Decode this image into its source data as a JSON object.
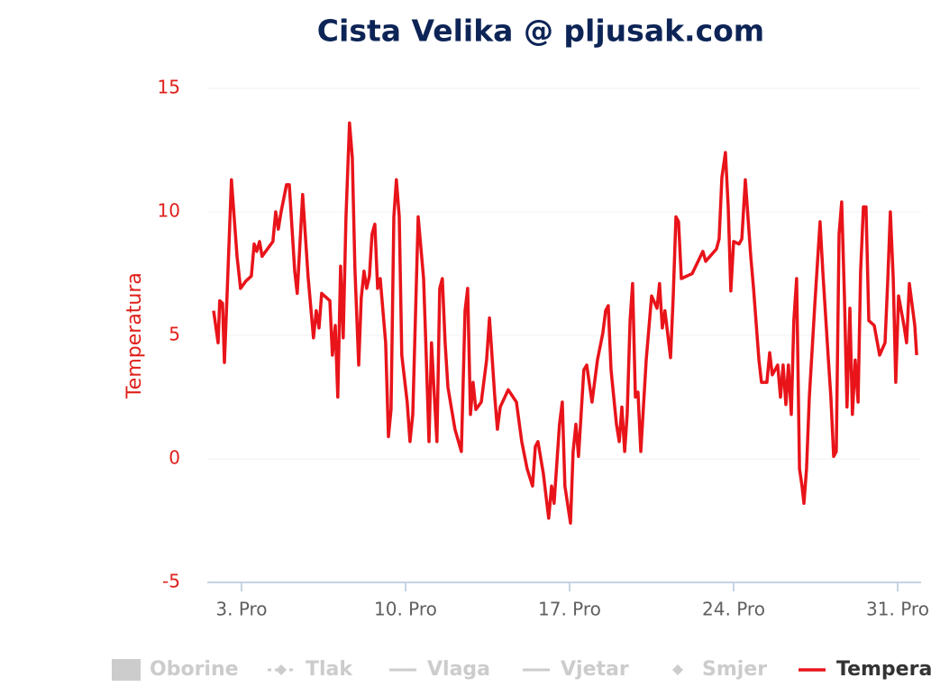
{
  "chart_data": {
    "type": "line",
    "title": "Cista Velika @ pljusak.com",
    "y_label": "Temperatura",
    "xlim": [
      1.54,
      32
    ],
    "xticks": [
      {
        "value": 3,
        "label": "3. Pro"
      },
      {
        "value": 10,
        "label": "10. Pro"
      },
      {
        "value": 17,
        "label": "17. Pro"
      },
      {
        "value": 24,
        "label": "24. Pro"
      },
      {
        "value": 31,
        "label": "31. Pro"
      }
    ],
    "ylim": [
      -5,
      15
    ],
    "yticks": [
      -5,
      0,
      5,
      10,
      15
    ],
    "grid": true,
    "legend_items": [
      {
        "name": "Oborine",
        "symbol": "square",
        "color": "#cccccc"
      },
      {
        "name": "Tlak",
        "symbol": "dash-diamond",
        "color": "#cccccc"
      },
      {
        "name": "Vlaga",
        "symbol": "line",
        "color": "#cccccc"
      },
      {
        "name": "Vjetar",
        "symbol": "line",
        "color": "#cccccc"
      },
      {
        "name": "Smjer",
        "symbol": "diamond",
        "color": "#cccccc"
      }
    ],
    "x": [
      1.81,
      2.0,
      2.07,
      2.19,
      2.27,
      2.38,
      2.57,
      2.81,
      2.96,
      3.19,
      3.42,
      3.54,
      3.65,
      3.77,
      3.88,
      4.34,
      4.46,
      4.57,
      4.69,
      4.92,
      5.04,
      5.27,
      5.38,
      5.61,
      5.84,
      6.07,
      6.19,
      6.31,
      6.42,
      6.77,
      6.88,
      7.0,
      7.11,
      7.23,
      7.34,
      7.46,
      7.61,
      7.73,
      7.84,
      8.0,
      8.11,
      8.23,
      8.34,
      8.46,
      8.57,
      8.69,
      8.81,
      8.92,
      9.15,
      9.27,
      9.38,
      9.5,
      9.61,
      9.73,
      9.84,
      10.07,
      10.19,
      10.31,
      10.54,
      10.77,
      10.88,
      11.0,
      11.11,
      11.23,
      11.34,
      11.46,
      11.57,
      11.69,
      11.81,
      12.11,
      12.38,
      12.54,
      12.65,
      12.77,
      12.88,
      13.0,
      13.23,
      13.46,
      13.58,
      13.81,
      13.92,
      14.04,
      14.38,
      14.73,
      14.96,
      15.19,
      15.42,
      15.54,
      15.65,
      15.88,
      16.11,
      16.23,
      16.34,
      16.57,
      16.69,
      16.8,
      17.04,
      17.15,
      17.27,
      17.38,
      17.61,
      17.73,
      17.96,
      18.19,
      18.42,
      18.54,
      18.65,
      18.77,
      19.0,
      19.12,
      19.23,
      19.35,
      19.46,
      19.58,
      19.69,
      19.81,
      19.92,
      20.04,
      20.27,
      20.5,
      20.73,
      20.84,
      20.96,
      21.07,
      21.31,
      21.42,
      21.54,
      21.65,
      21.77,
      22.23,
      22.69,
      22.81,
      23.27,
      23.38,
      23.5,
      23.65,
      23.77,
      23.88,
      24.0,
      24.23,
      24.35,
      24.5,
      24.73,
      24.85,
      25.08,
      25.19,
      25.42,
      25.54,
      25.65,
      25.88,
      26.0,
      26.11,
      26.23,
      26.34,
      26.46,
      26.57,
      26.69,
      26.81,
      26.92,
      27.0,
      27.11,
      27.23,
      27.46,
      27.69,
      27.81,
      28.04,
      28.15,
      28.27,
      28.38,
      28.5,
      28.61,
      28.73,
      28.84,
      28.96,
      29.07,
      29.19,
      29.31,
      29.42,
      29.54,
      29.65,
      29.77,
      30.0,
      30.23,
      30.46,
      30.58,
      30.69,
      30.81,
      30.92,
      31.04,
      31.27,
      31.38,
      31.5,
      31.73,
      31.81
    ],
    "series": [
      {
        "name": "Temperatura",
        "color": "#e8141a",
        "values": [
          6.0,
          4.7,
          6.4,
          6.3,
          3.9,
          6.5,
          11.3,
          8.2,
          6.9,
          7.2,
          7.4,
          8.7,
          8.4,
          8.8,
          8.2,
          8.8,
          10.0,
          9.3,
          10.0,
          11.1,
          11.1,
          7.6,
          6.7,
          10.7,
          7.4,
          4.9,
          6.0,
          5.3,
          6.7,
          6.4,
          4.2,
          5.4,
          2.5,
          7.8,
          4.9,
          9.8,
          13.6,
          12.2,
          7.7,
          3.8,
          6.5,
          7.6,
          6.9,
          7.4,
          9.1,
          9.5,
          6.9,
          7.3,
          4.7,
          0.9,
          2.0,
          9.8,
          11.3,
          9.8,
          4.2,
          2.3,
          0.7,
          1.8,
          9.8,
          7.3,
          4.2,
          0.7,
          4.7,
          2.5,
          0.7,
          6.9,
          7.3,
          4.7,
          2.9,
          1.2,
          0.3,
          6.0,
          6.9,
          1.8,
          3.1,
          2.0,
          2.3,
          4.0,
          5.7,
          2.5,
          1.2,
          2.1,
          2.8,
          2.3,
          0.7,
          -0.4,
          -1.1,
          0.5,
          0.7,
          -0.6,
          -2.4,
          -1.1,
          -1.8,
          1.4,
          2.3,
          -1.1,
          -2.6,
          0.3,
          1.4,
          0.1,
          3.6,
          3.8,
          2.3,
          4.0,
          5.1,
          6.0,
          6.2,
          3.6,
          1.4,
          0.7,
          2.1,
          0.3,
          1.8,
          5.6,
          7.1,
          2.5,
          2.7,
          0.3,
          4.0,
          6.6,
          6.1,
          7.1,
          5.3,
          6.0,
          4.1,
          6.5,
          9.8,
          9.6,
          7.3,
          7.5,
          8.4,
          8.0,
          8.5,
          8.9,
          11.4,
          12.4,
          10.2,
          6.8,
          8.8,
          8.7,
          8.9,
          11.3,
          8.2,
          6.9,
          4.0,
          3.1,
          3.1,
          4.3,
          3.4,
          3.8,
          2.5,
          3.8,
          2.2,
          3.8,
          1.8,
          5.6,
          7.3,
          -0.4,
          -1.1,
          -1.8,
          -0.4,
          2.5,
          6.2,
          9.6,
          7.5,
          4.1,
          2.5,
          0.1,
          0.3,
          9.1,
          10.4,
          6.5,
          2.1,
          6.1,
          1.8,
          4.0,
          2.3,
          7.6,
          10.2,
          10.2,
          5.6,
          5.4,
          4.2,
          4.7,
          7.3,
          10.0,
          7.3,
          3.1,
          6.6,
          5.4,
          4.7,
          7.1,
          5.4,
          4.2
        ]
      }
    ]
  }
}
